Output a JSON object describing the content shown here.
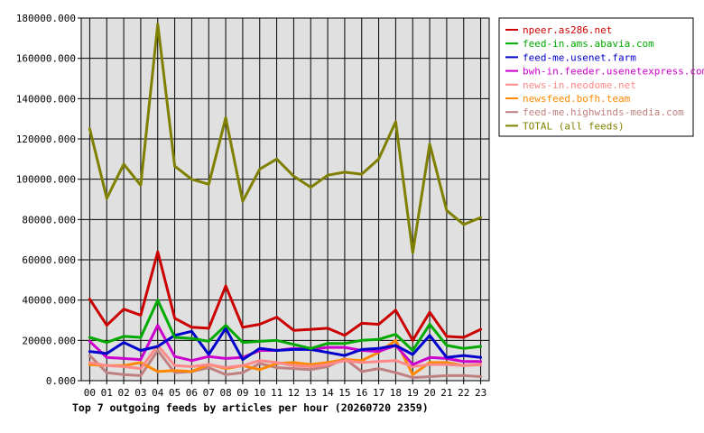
{
  "chart_data": {
    "type": "line",
    "title": "Top 7 outgoing feeds by articles per hour (20260720 2359)",
    "xlabel": "",
    "ylabel": "",
    "ylim": [
      0,
      180000
    ],
    "grid": true,
    "legend_position": "top-right",
    "plot_background": "#e0e0e0",
    "x": [
      "00",
      "01",
      "02",
      "03",
      "04",
      "05",
      "06",
      "07",
      "08",
      "09",
      "10",
      "11",
      "12",
      "13",
      "14",
      "15",
      "16",
      "17",
      "18",
      "19",
      "20",
      "21",
      "22",
      "23"
    ],
    "y_ticks": [
      "0.000",
      "20000.000",
      "40000.000",
      "60000.000",
      "80000.000",
      "100000.000",
      "120000.000",
      "140000.000",
      "160000.000",
      "180000.000"
    ],
    "series": [
      {
        "name": "npeer.as286.net",
        "color": "#cc0000",
        "values": [
          40500,
          27500,
          35500,
          32500,
          64000,
          31000,
          26500,
          26000,
          47000,
          26500,
          28000,
          31500,
          25000,
          25500,
          26000,
          22500,
          28500,
          28000,
          35000,
          20000,
          34000,
          22000,
          21500,
          25500
        ]
      },
      {
        "name": "feed-in.ams.abavia.com",
        "color": "#00aa00",
        "values": [
          21500,
          19000,
          22000,
          21500,
          40000,
          21500,
          21000,
          19500,
          27500,
          19000,
          19500,
          20000,
          18000,
          16000,
          18500,
          18500,
          20000,
          20500,
          23000,
          15000,
          28000,
          17500,
          16000,
          17000
        ]
      },
      {
        "name": "feed-me.usenet.farm",
        "color": "#0000cc",
        "values": [
          14500,
          13500,
          19000,
          15000,
          17000,
          22500,
          24500,
          13000,
          26000,
          10500,
          16000,
          15000,
          15500,
          15500,
          14000,
          12500,
          15500,
          16000,
          17500,
          13000,
          22500,
          11500,
          12500,
          11500
        ]
      },
      {
        "name": "bwh-in.feeder.usenetexpress.com",
        "color": "#cc00cc",
        "values": [
          19500,
          11500,
          11000,
          10500,
          27500,
          12000,
          10000,
          12000,
          11000,
          11500,
          15000,
          15000,
          16000,
          15500,
          16500,
          16500,
          15000,
          14500,
          17500,
          8000,
          11500,
          11000,
          9500,
          9500
        ]
      },
      {
        "name": "news-in.neodome.net",
        "color": "#ff8888",
        "values": [
          9000,
          7500,
          7000,
          6000,
          17500,
          7500,
          7000,
          8000,
          6500,
          7500,
          10000,
          9000,
          7500,
          7000,
          8000,
          10000,
          9000,
          9500,
          10000,
          7000,
          8000,
          8000,
          7500,
          8000
        ]
      },
      {
        "name": "newsfeed.bofh.team",
        "color": "#ff8800",
        "values": [
          8000,
          7500,
          7500,
          9000,
          4500,
          5000,
          4500,
          8000,
          6000,
          7500,
          5500,
          8500,
          9000,
          8000,
          9000,
          10500,
          10000,
          14000,
          20000,
          3000,
          9000,
          9000,
          7500,
          8000
        ]
      },
      {
        "name": "feed-me.highwinds-media.com",
        "color": "#c08080",
        "values": [
          12500,
          4000,
          3000,
          2500,
          15000,
          4000,
          4500,
          6500,
          3000,
          4000,
          8500,
          6500,
          6000,
          5500,
          7000,
          11000,
          4500,
          6000,
          4000,
          1500,
          2000,
          2500,
          2500,
          2000
        ]
      },
      {
        "name": "TOTAL (all feeds)",
        "color": "#808000",
        "values": [
          125000,
          90500,
          107500,
          97000,
          177000,
          106500,
          100000,
          97500,
          130500,
          89000,
          105000,
          110000,
          101500,
          96000,
          102000,
          103500,
          102500,
          110000,
          128500,
          63500,
          117500,
          84500,
          77500,
          81000
        ]
      }
    ]
  }
}
